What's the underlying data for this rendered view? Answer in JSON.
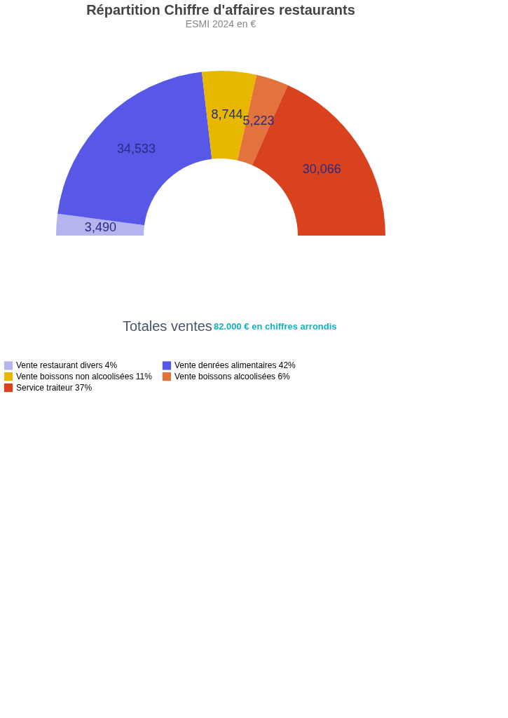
{
  "chart_data": {
    "type": "donut",
    "title": "Répartition Chiffre d'affaires restaurants",
    "subtitle": "ESMI 2024 en €",
    "categories": [
      "Vente restaurant divers  4%",
      "Vente denrées alimentaires  42%",
      "Vente boissons non alcoolisées  11%",
      "Vente boissons alcoolisées  6%",
      "Service traiteur  37%"
    ],
    "values": [
      3490,
      34533,
      8744,
      5223,
      30066
    ],
    "colors": [
      "#b4b4ee",
      "#5858e8",
      "#e8b800",
      "#e2733c",
      "#d9421f"
    ],
    "value_labels": [
      "3,490",
      "34,533",
      "8,744",
      "5,223",
      "30,066"
    ],
    "legend": "bottom",
    "annotations": [
      "Totales ventes",
      "82.000 € en chiffres arrondis"
    ]
  }
}
